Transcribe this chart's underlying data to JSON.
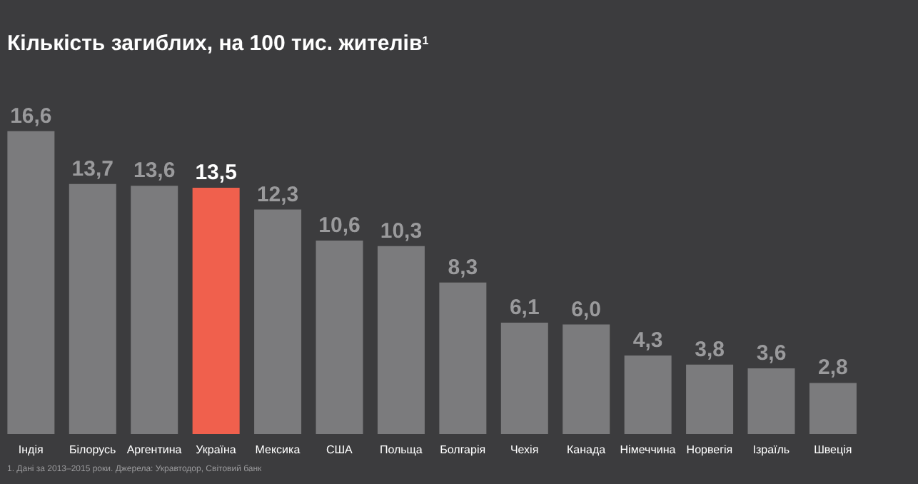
{
  "chart_data": {
    "type": "bar",
    "title": "Кількість загиблих, на 100 тис. жителів$^{1}$",
    "categories": [
      "Індія",
      "Білорусь",
      "Аргентина",
      "Україна",
      "Мексика",
      "США",
      "Польща",
      "Болгарія",
      "Чехія",
      "Канада",
      "Німеччина",
      "Норвегія",
      "Ізраїль",
      "Швеція"
    ],
    "values": [
      16.6,
      13.7,
      13.6,
      13.5,
      12.3,
      10.6,
      10.3,
      8.3,
      6.1,
      6.0,
      4.3,
      3.8,
      3.6,
      2.8
    ],
    "value_labels": [
      "16,6",
      "13,7",
      "13,6",
      "13,5",
      "12,3",
      "10,6",
      "10,3",
      "8,3",
      "6,1",
      "6,0",
      "4,3",
      "3,8",
      "3,6",
      "2,8"
    ],
    "colors": [
      "#7b7b7d",
      "#7b7b7d",
      "#7b7b7d",
      "#f0604d",
      "#7b7b7d",
      "#7b7b7d",
      "#7b7b7d",
      "#7b7b7d",
      "#7b7b7d",
      "#7b7b7d",
      "#7b7b7d",
      "#7b7b7d",
      "#7b7b7d",
      "#7b7b7d"
    ],
    "annotations": [
      "1. Дані за 2013–2015 роки. Джерела: Укравтодор, Світовий банк"
    ]
  }
}
